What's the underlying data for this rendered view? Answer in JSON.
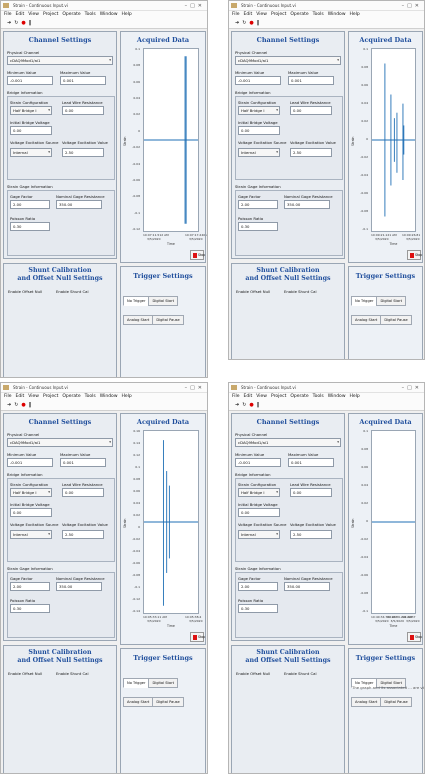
{
  "common": {
    "menu": [
      "File",
      "Edit",
      "View",
      "Project",
      "Operate",
      "Tools",
      "Window",
      "Help"
    ],
    "channel_settings": "Channel Settings",
    "physical_channel_label": "Physical Channel",
    "minimum_value_label": "Minimum Value",
    "maximum_value_label": "Maximum Value",
    "bridge_information": "Bridge Information",
    "strain_configuration_label": "Strain Configuration",
    "lead_wire_resistance_label": "Lead Wire Resistance",
    "initial_bridge_voltage_label": "Initial Bridge Voltage",
    "voltage_excitation_source_label": "Voltage Excitation Source",
    "voltage_excitation_value_label": "Voltage Excitation Value",
    "strain_gage_information": "Strain Gage Information",
    "gage_factor_label": "Gage Factor",
    "nominal_gage_resistance_label": "Nominal Gage Resistance",
    "poisson_ratio_label": "Poisson Ratio",
    "acquired_data": "Acquired Data",
    "trigger_settings": "Trigger Settings",
    "shunt_title_1": "Shunt Calibration",
    "shunt_title_2": "and Offset Null Settings",
    "enable_offset_null": "Enable Offset Null",
    "enable_shunt_cal": "Enable Shunt Cal",
    "tabs": [
      "No Trigger",
      "Digital Start",
      "Analog Start",
      "Digital Pause"
    ],
    "stop": "Stop",
    "ylabel": "Strain",
    "xlabel": "Time",
    "description_text": "The graph and its associated ... are visible in the screen ... (text is truncated)",
    "colors": {
      "accent": "#1f4e9c",
      "signal": "#1f6fb5",
      "stop_red": "#dd1111"
    }
  },
  "screens": [
    {
      "window_title": "Strain - Continuous Input.vi",
      "physical_channel": "cDAQ9Mod1/ai1",
      "minimum_value": "-0.001",
      "maximum_value": "0.001",
      "strain_configuration": "Half Bridge I",
      "lead_wire_resistance": "0.00",
      "initial_bridge_voltage": "0.00",
      "voltage_excitation_source": "Internal",
      "voltage_excitation_value": "2.50",
      "gage_factor": "2.00",
      "nominal_gage_resistance": "350.00",
      "poisson_ratio": "0.30",
      "y_ticks": [
        "0.1",
        "0.08",
        "0.06",
        "0.04",
        "0.02",
        "0",
        "-0.02",
        "-0.04",
        "-0.06",
        "-0.08",
        "-0.1",
        "-0.12"
      ],
      "x_ticks": [
        {
          "time": "10:07:11.512 AM",
          "date": "3/5/2020"
        },
        {
          "time": "10:07:17.240 A",
          "date": "3/5/2020"
        }
      ],
      "spikes": [
        {
          "x": 0.76,
          "top": 0.04,
          "bot": 0.96
        },
        {
          "x": 0.78,
          "top": 0.04,
          "bot": 0.96
        }
      ]
    },
    {
      "window_title": "Strain - Continuous Input.vi",
      "physical_channel": "cDAQ9Mod1/ai1",
      "minimum_value": "-0.001",
      "maximum_value": "0.001",
      "strain_configuration": "Half Bridge I",
      "lead_wire_resistance": "0.00",
      "initial_bridge_voltage": "0.00",
      "voltage_excitation_source": "Internal",
      "voltage_excitation_value": "2.50",
      "gage_factor": "2.00",
      "nominal_gage_resistance": "350.00",
      "poisson_ratio": "0.30",
      "y_ticks": [
        "0.1",
        "0.08",
        "0.06",
        "0.04",
        "0.02",
        "0",
        "-0.02",
        "-0.04",
        "-0.06",
        "-0.08",
        "-0.1"
      ],
      "x_ticks": [
        {
          "time": "10:09:21.121 AM",
          "date": "3/5/2020"
        },
        {
          "time": "10:09:26.81",
          "date": "3/5/2020"
        }
      ],
      "spikes": [
        {
          "x": 0.3,
          "top": 0.08,
          "bot": 0.92
        },
        {
          "x": 0.44,
          "top": 0.25,
          "bot": 0.75
        },
        {
          "x": 0.52,
          "top": 0.38,
          "bot": 0.62
        },
        {
          "x": 0.58,
          "top": 0.35,
          "bot": 0.68
        },
        {
          "x": 0.72,
          "top": 0.3,
          "bot": 0.72
        },
        {
          "x": 0.74,
          "top": 0.42,
          "bot": 0.58
        }
      ]
    },
    {
      "window_title": "Strain - Continuous Input.vi",
      "physical_channel": "cDAQ9Mod1/ai1",
      "minimum_value": "-0.001",
      "maximum_value": "0.001",
      "strain_configuration": "Half Bridge I",
      "lead_wire_resistance": "0.00",
      "initial_bridge_voltage": "0.00",
      "voltage_excitation_source": "Internal",
      "voltage_excitation_value": "2.50",
      "gage_factor": "2.00",
      "nominal_gage_resistance": "350.00",
      "poisson_ratio": "0.30",
      "y_ticks": [
        "0.16",
        "0.14",
        "0.12",
        "0.1",
        "0.08",
        "0.06",
        "0.04",
        "0.02",
        "0",
        "-0.02",
        "-0.04",
        "-0.06",
        "-0.08",
        "-0.1",
        "-0.12",
        "-0.14"
      ],
      "x_ticks": [
        {
          "time": "10:05:33.11 AM",
          "date": "3/5/2020"
        },
        {
          "time": "10:05:38.4",
          "date": "3/5/2020"
        }
      ],
      "spikes": [
        {
          "x": 0.36,
          "top": 0.05,
          "bot": 0.96
        },
        {
          "x": 0.42,
          "top": 0.22,
          "bot": 0.78
        },
        {
          "x": 0.47,
          "top": 0.3,
          "bot": 0.7
        }
      ]
    },
    {
      "window_title": "Strain - Continuous Input.vi",
      "physical_channel": "cDAQ9Mod1/ai1",
      "minimum_value": "-0.001",
      "maximum_value": "0.001",
      "strain_configuration": "Half Bridge I",
      "lead_wire_resistance": "0.00",
      "initial_bridge_voltage": "0.00",
      "voltage_excitation_source": "Internal",
      "voltage_excitation_value": "2.50",
      "gage_factor": "2.00",
      "nominal_gage_resistance": "350.00",
      "poisson_ratio": "0.30",
      "y_ticks": [
        "0.1",
        "0.08",
        "0.06",
        "0.04",
        "0.02",
        "0",
        "-0.02",
        "-0.04",
        "-0.06",
        "-0.08",
        "-0.1"
      ],
      "x_ticks": [
        {
          "time": "10:40:34.772 AM",
          "date": "3/5/2020"
        },
        {
          "time": "10:40:36.291 AM",
          "date": "3/5/2020"
        },
        {
          "time": "10:40:37",
          "date": "3/5/2020"
        }
      ],
      "spikes": []
    }
  ]
}
